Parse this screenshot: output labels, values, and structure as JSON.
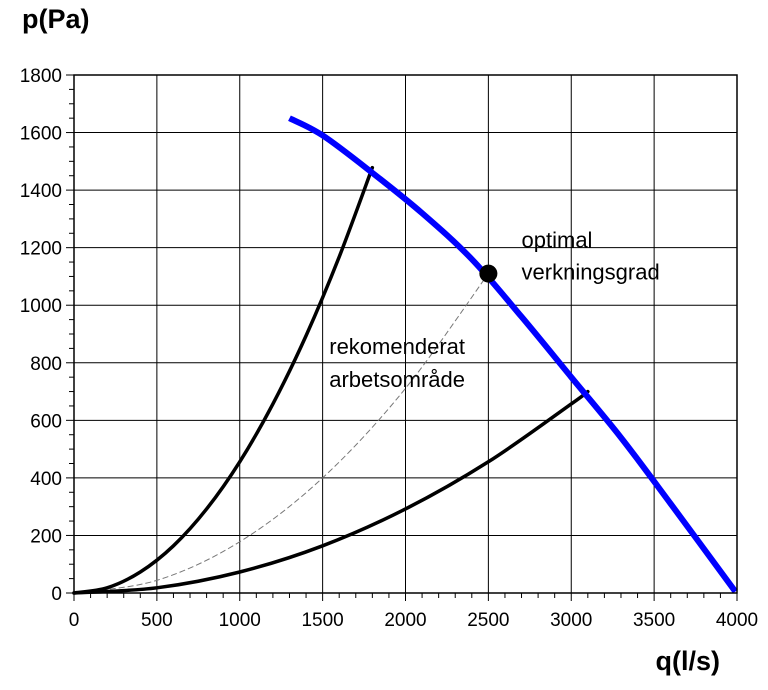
{
  "chart_data": {
    "type": "line",
    "title": "",
    "xlabel": "q(l/s)",
    "ylabel": "p(Pa)",
    "xlim": [
      0,
      4000
    ],
    "ylim": [
      0,
      1800
    ],
    "x_ticks": [
      0,
      500,
      1000,
      1500,
      2000,
      2500,
      3000,
      3500,
      4000
    ],
    "y_ticks": [
      0,
      200,
      400,
      600,
      800,
      1000,
      1200,
      1400,
      1600,
      1800
    ],
    "grid": true,
    "colors": {
      "fan_curve": "#0000ff",
      "system_curves": "#000000",
      "optimal_curve": "#777777",
      "grid": "#000000"
    },
    "series": [
      {
        "name": "fan curve",
        "style": "thick-blue",
        "x": [
          1300,
          1500,
          1800,
          2100,
          2400,
          2700,
          3000,
          3300,
          3600,
          3990
        ],
        "y": [
          1650,
          1590,
          1460,
          1320,
          1160,
          960,
          750,
          540,
          310,
          5
        ]
      },
      {
        "name": "system curve upper limit",
        "style": "solid-black",
        "x": [
          0,
          200,
          400,
          600,
          800,
          1000,
          1200,
          1400,
          1600,
          1800
        ],
        "y": [
          0,
          18,
          73,
          164,
          292,
          456,
          657,
          894,
          1168,
          1478
        ]
      },
      {
        "name": "system curve lower limit",
        "style": "solid-black",
        "x": [
          0,
          500,
          1000,
          1500,
          2000,
          2500,
          3000,
          3100
        ],
        "y": [
          0,
          18,
          73,
          164,
          292,
          456,
          657,
          700
        ]
      },
      {
        "name": "optimal efficiency curve",
        "style": "dashed-gray",
        "x": [
          0,
          500,
          1000,
          1500,
          2000,
          2500
        ],
        "y": [
          0,
          44,
          178,
          400,
          711,
          1110
        ]
      }
    ],
    "points": [
      {
        "name": "optimal point",
        "x": 2500,
        "y": 1110
      }
    ],
    "annotations": [
      {
        "id": "optimal_line1",
        "text": "optimal",
        "x": 2700,
        "y": 1200
      },
      {
        "id": "optimal_line2",
        "text": "verkningsgrad",
        "x": 2700,
        "y": 1090
      },
      {
        "id": "region_line1",
        "text": "rekomenderat",
        "x": 1540,
        "y": 830
      },
      {
        "id": "region_line2",
        "text": "arbetsområde",
        "x": 1540,
        "y": 715
      }
    ]
  }
}
